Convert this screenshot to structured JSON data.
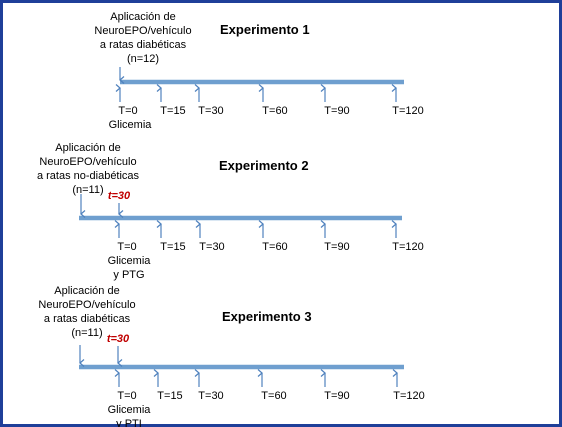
{
  "colors": {
    "timeline": "#6f9fcf",
    "arrow": "#4f81bd",
    "highlight": "#c00000",
    "frame": "#1f3f99"
  },
  "experiments": [
    {
      "title": "Experimento 1",
      "application": [
        "Aplicación de",
        "NeuroEPO/vehículo",
        "a ratas diabéticas",
        "(n=12)"
      ],
      "marker": "",
      "times": [
        "T=0",
        "T=15",
        "T=30",
        "T=60",
        "T=90",
        "T=120"
      ],
      "t0_notes": [
        "Glicemia"
      ]
    },
    {
      "title": "Experimento 2",
      "application": [
        "Aplicación de",
        "NeuroEPO/vehículo",
        "a ratas no-diabéticas",
        "(n=11)"
      ],
      "marker": "t=30",
      "times": [
        "T=0",
        "T=15",
        "T=30",
        "T=60",
        "T=90",
        "T=120"
      ],
      "t0_notes": [
        "Glicemia",
        "y PTG"
      ]
    },
    {
      "title": "Experimento 3",
      "application": [
        "Aplicación de",
        "NeuroEPO/vehículo",
        "a ratas diabéticas",
        "(n=11)"
      ],
      "marker": "t=30",
      "times": [
        "T=0",
        "T=15",
        "T=30",
        "T=60",
        "T=90",
        "T=120"
      ],
      "t0_notes": [
        "Glicemia",
        "y PTI"
      ]
    }
  ]
}
